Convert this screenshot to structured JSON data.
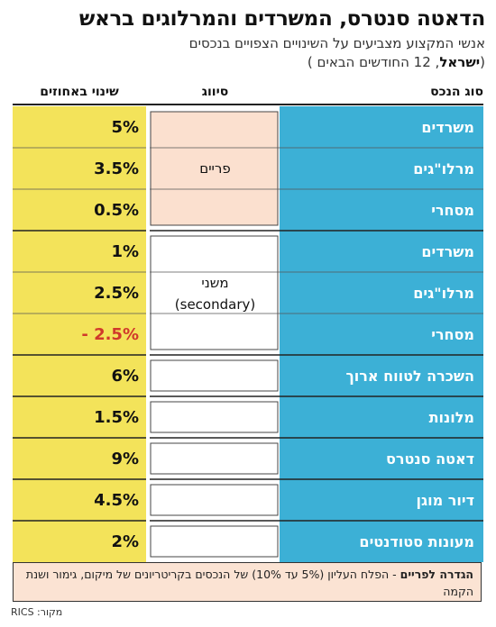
{
  "header": {
    "title": "הדאטה סנטרס, המשרדים והמרלוגים בראש",
    "subtitle_line1": "אנשי המקצוע מצביעים על השינויים הצפויים בנכסים",
    "subtitle_bold": "ישראל",
    "subtitle_line2_rest": ", 12 החודשים הבאים )",
    "subtitle_open_paren": "("
  },
  "columns": {
    "asset_type": "סוג הנכס",
    "classification": "סיווג",
    "change_pct": "שינוי באחוזים"
  },
  "colors": {
    "asset_bg": "#3cb0d6",
    "value_bg": "#f3e35a",
    "prime_bg": "#fbe0cf",
    "secondary_bg": "#ffffff",
    "negative_text": "#d0392b",
    "positive_text": "#111111"
  },
  "chart_data": {
    "type": "table",
    "groups": [
      {
        "classification": "פריים",
        "classification_sub": "",
        "rows": [
          0,
          1,
          2
        ]
      },
      {
        "classification": "משני",
        "classification_sub": "(secondary)",
        "rows": [
          3,
          4,
          5
        ]
      },
      {
        "classification": "",
        "classification_sub": "",
        "rows": [
          6
        ]
      },
      {
        "classification": "",
        "classification_sub": "",
        "rows": [
          7
        ]
      },
      {
        "classification": "",
        "classification_sub": "",
        "rows": [
          8
        ]
      },
      {
        "classification": "",
        "classification_sub": "",
        "rows": [
          9
        ]
      },
      {
        "classification": "",
        "classification_sub": "",
        "rows": [
          10
        ]
      }
    ],
    "rows": [
      {
        "asset": "משרדים",
        "value": 5,
        "label": "5%"
      },
      {
        "asset": "מרלו\"גים",
        "value": 3.5,
        "label": "3.5%"
      },
      {
        "asset": "מסחרי",
        "value": 0.5,
        "label": "0.5%"
      },
      {
        "asset": "משרדים",
        "value": 1,
        "label": "1%"
      },
      {
        "asset": "מרלו\"גים",
        "value": 2.5,
        "label": "2.5%"
      },
      {
        "asset": "מסחרי",
        "value": -2.5,
        "label": "- 2.5%"
      },
      {
        "asset": "השכרה לטווח ארוך",
        "value": 6,
        "label": "6%"
      },
      {
        "asset": "מלונות",
        "value": 1.5,
        "label": "1.5%"
      },
      {
        "asset": "דאטה סנטרס",
        "value": 9,
        "label": "9%"
      },
      {
        "asset": "דיור מוגן",
        "value": 4.5,
        "label": "4.5%"
      },
      {
        "asset": "מעונות סטודנטים",
        "value": 2,
        "label": "2%"
      }
    ]
  },
  "footnote": {
    "bold": "הגדרה לפריים",
    "text": " - הפלח העליון (5% עד 10%) של הנכסים בקריטריונים של מיקום, גימור ושנת הקמה"
  },
  "source": "מקור: RICS"
}
